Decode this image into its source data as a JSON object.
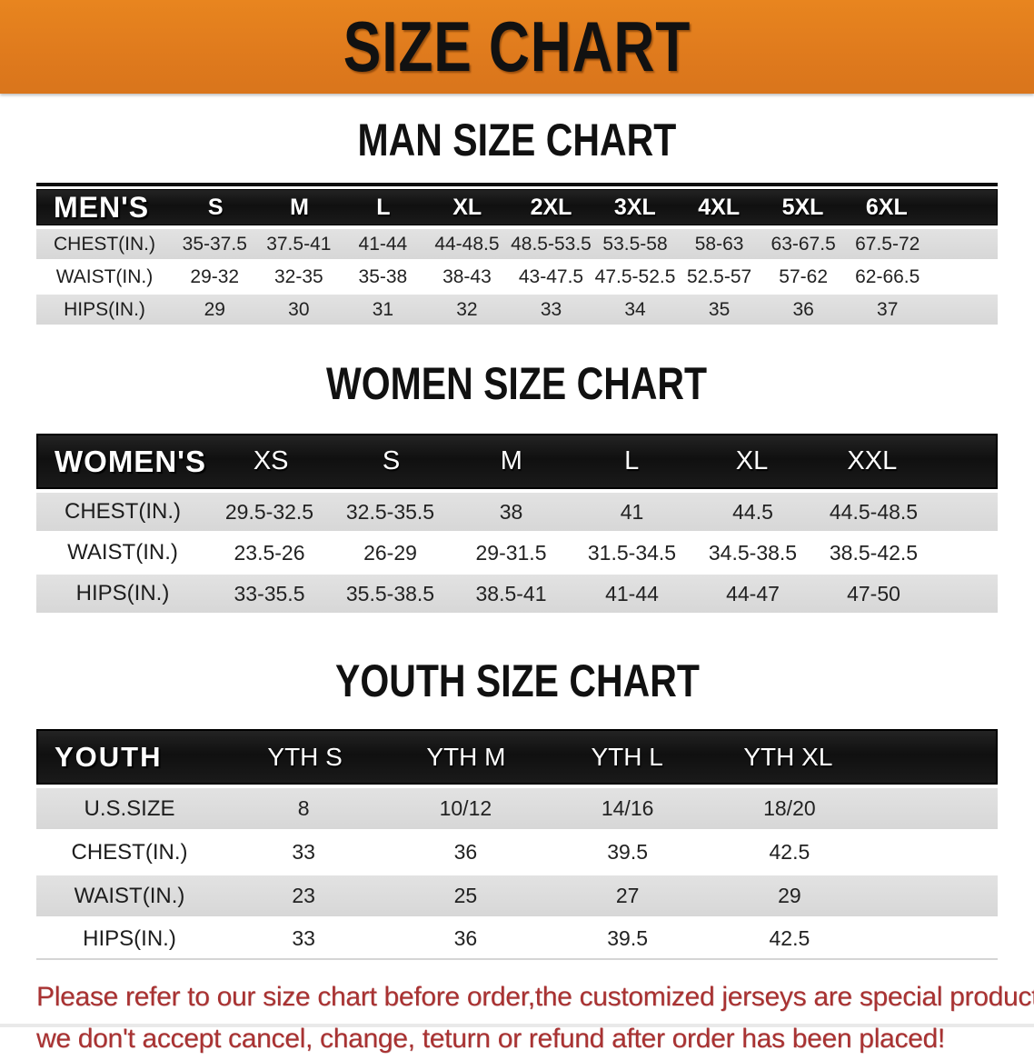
{
  "banner": {
    "title": "SIZE CHART"
  },
  "sections": [
    {
      "title": "MAN SIZE CHART",
      "header_label": "MEN'S",
      "columns": [
        "S",
        "M",
        "L",
        "XL",
        "2XL",
        "3XL",
        "4XL",
        "5XL",
        "6XL"
      ],
      "rows": [
        {
          "label": "CHEST(IN.)",
          "values": [
            "35-37.5",
            "37.5-41",
            "41-44",
            "44-48.5",
            "48.5-53.5",
            "53.5-58",
            "58-63",
            "63-67.5",
            "67.5-72"
          ]
        },
        {
          "label": "WAIST(IN.)",
          "values": [
            "29-32",
            "32-35",
            "35-38",
            "38-43",
            "43-47.5",
            "47.5-52.5",
            "52.5-57",
            "57-62",
            "62-66.5"
          ]
        },
        {
          "label": "HIPS(IN.)",
          "values": [
            "29",
            "30",
            "31",
            "32",
            "33",
            "34",
            "35",
            "36",
            "37"
          ]
        }
      ]
    },
    {
      "title": "WOMEN SIZE CHART",
      "header_label": "WOMEN'S",
      "columns": [
        "XS",
        "S",
        "M",
        "L",
        "XL",
        "XXL"
      ],
      "rows": [
        {
          "label": "CHEST(IN.)",
          "values": [
            "29.5-32.5",
            "32.5-35.5",
            "38",
            "41",
            "44.5",
            "44.5-48.5"
          ]
        },
        {
          "label": "WAIST(IN.)",
          "values": [
            "23.5-26",
            "26-29",
            "29-31.5",
            "31.5-34.5",
            "34.5-38.5",
            "38.5-42.5"
          ]
        },
        {
          "label": "HIPS(IN.)",
          "values": [
            "33-35.5",
            "35.5-38.5",
            "38.5-41",
            "41-44",
            "44-47",
            "47-50"
          ]
        }
      ]
    },
    {
      "title": "YOUTH SIZE CHART",
      "header_label": "YOUTH",
      "columns": [
        "YTH S",
        "YTH M",
        "YTH L",
        "YTH XL"
      ],
      "rows": [
        {
          "label": "U.S.SIZE",
          "values": [
            "8",
            "10/12",
            "14/16",
            "18/20"
          ]
        },
        {
          "label": "CHEST(IN.)",
          "values": [
            "33",
            "36",
            "39.5",
            "42.5"
          ]
        },
        {
          "label": "WAIST(IN.)",
          "values": [
            "23",
            "25",
            "27",
            "29"
          ]
        },
        {
          "label": "HIPS(IN.)",
          "values": [
            "33",
            "36",
            "39.5",
            "42.5"
          ]
        }
      ]
    }
  ],
  "disclaimer": {
    "line1": "Please refer to our size chart before order,the customized jerseys are special products,",
    "line2": "we don't accept cancel, change, teturn or refund after order has been placed!"
  },
  "colors": {
    "banner_orange": "#e07c1e",
    "header_black": "#161616",
    "row_gray": "#d9d9d9",
    "text_dark": "#1d1d1d",
    "disclaimer_red": "#a93232"
  }
}
